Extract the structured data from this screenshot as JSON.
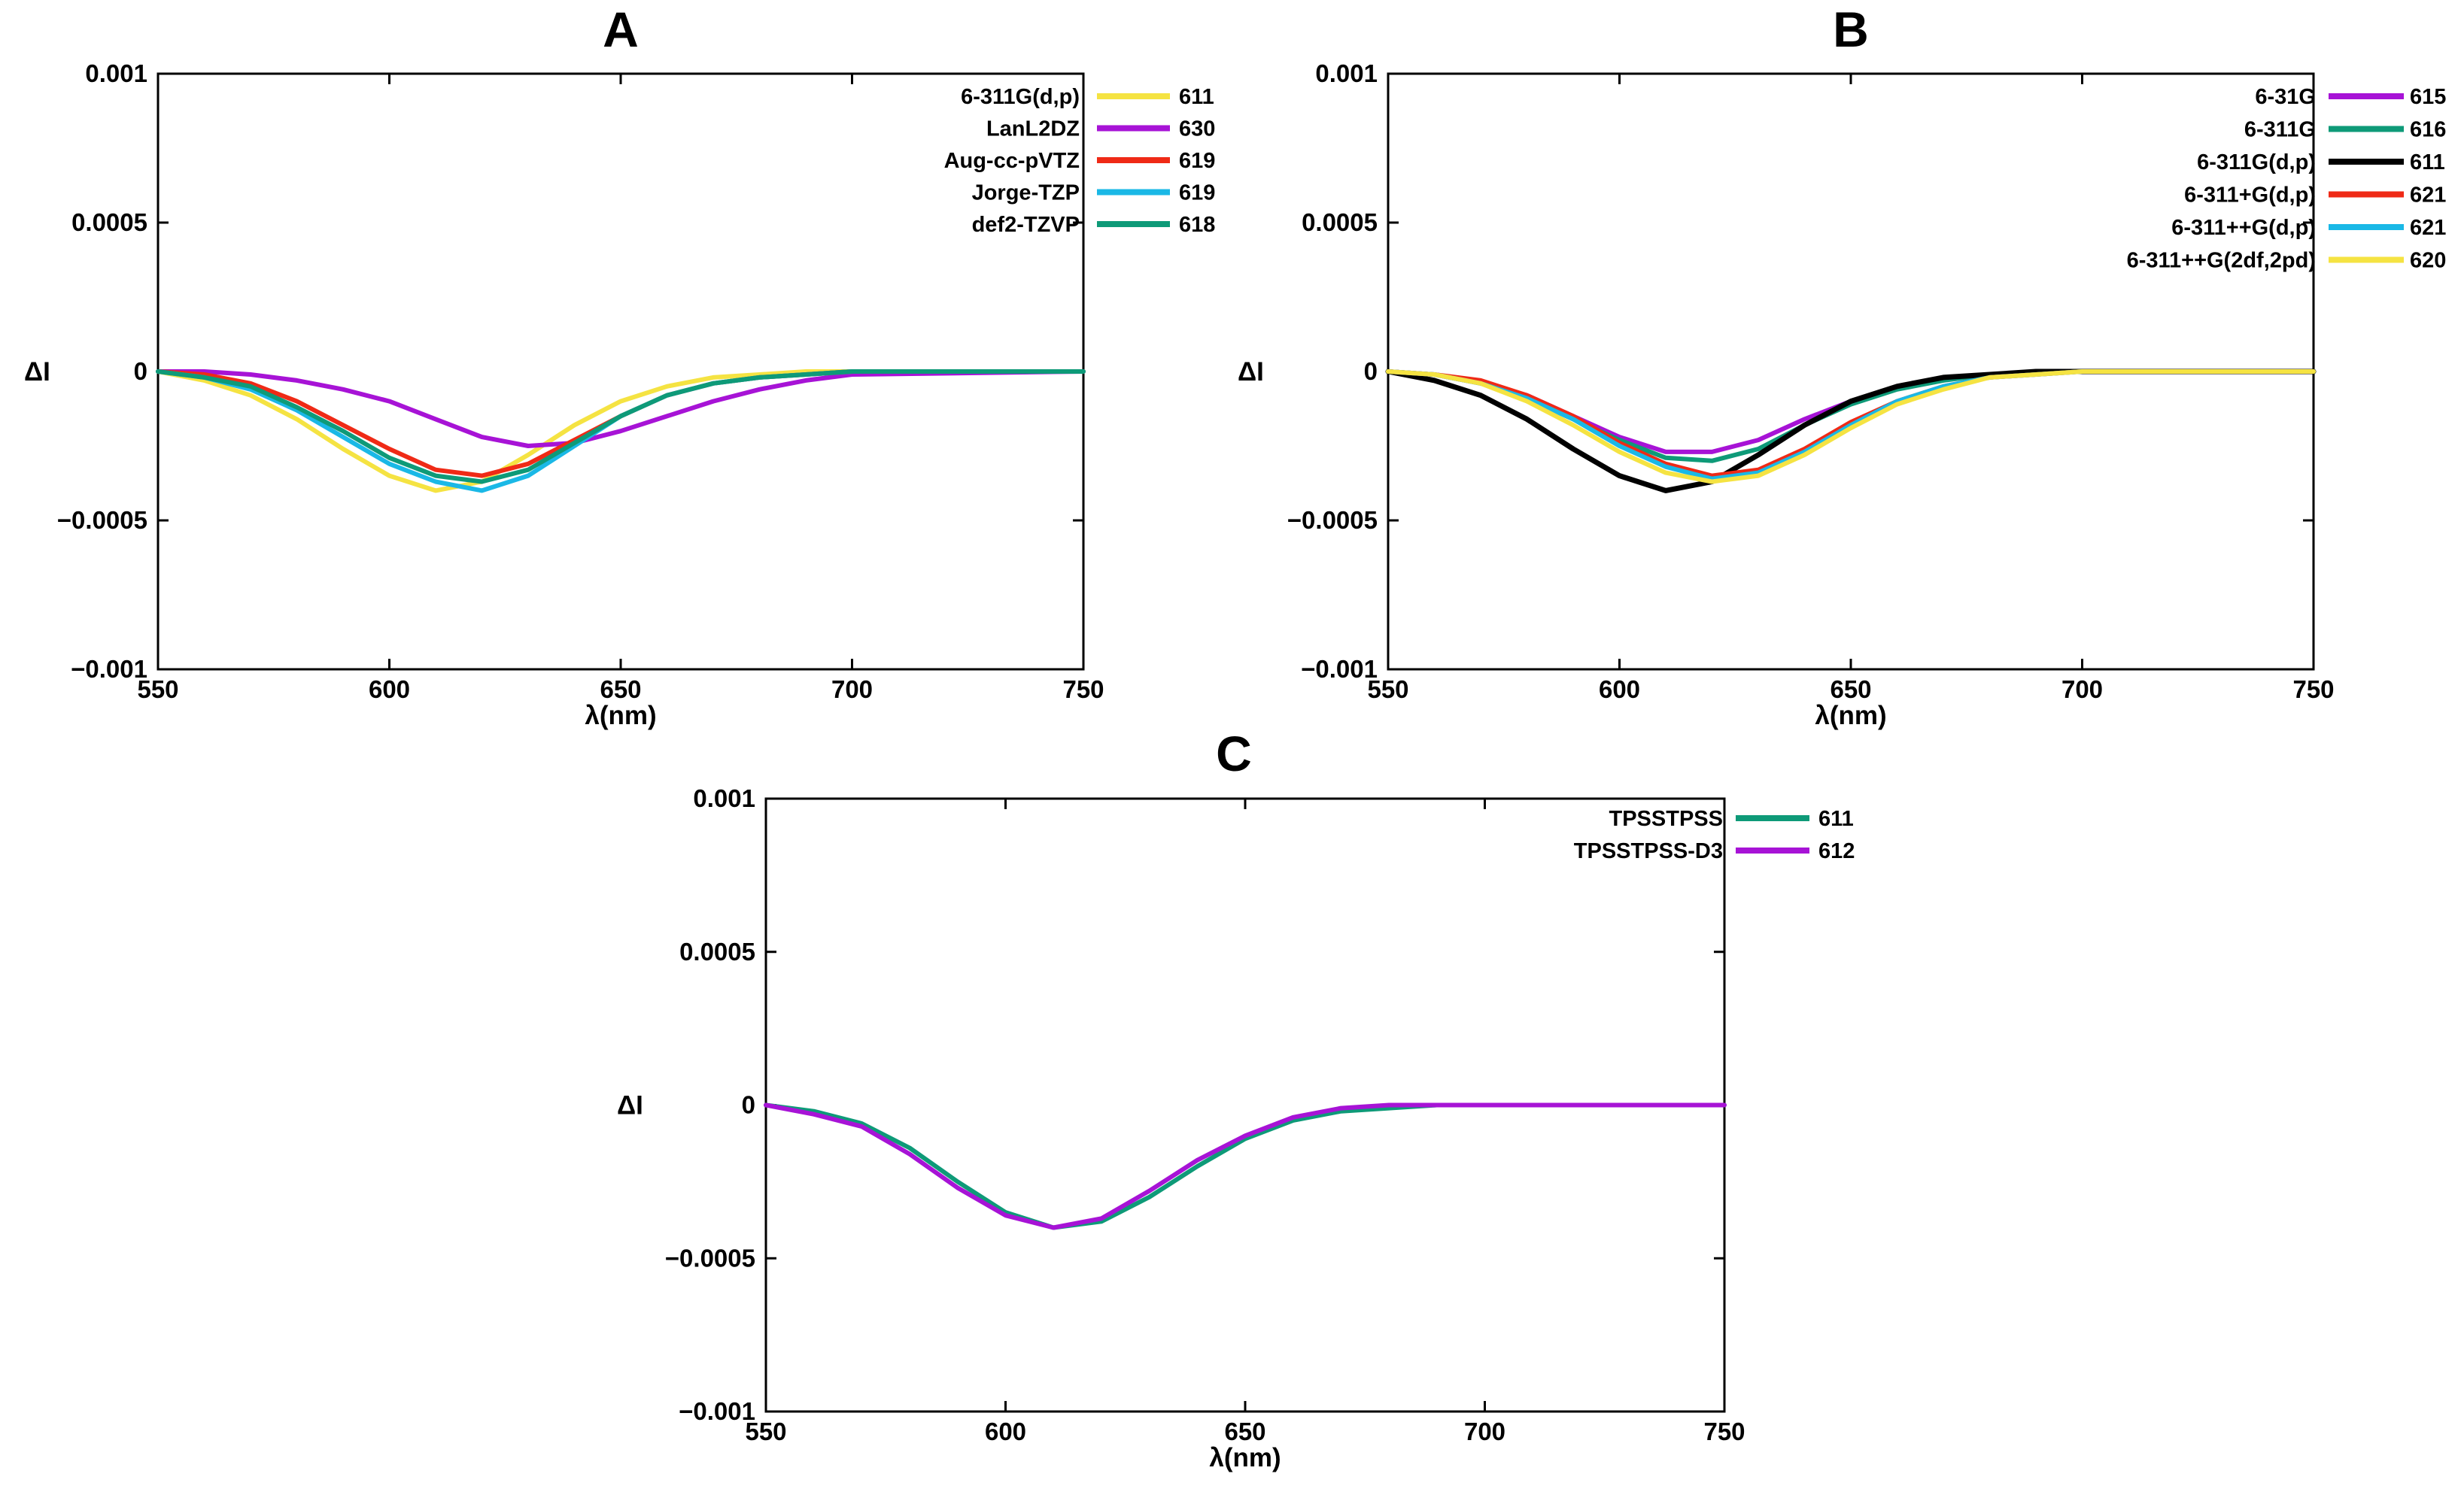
{
  "chart_data": [
    {
      "type": "line",
      "title": "A",
      "xlabel": "λ(nm)",
      "ylabel": "ΔI",
      "xlim": [
        550,
        750
      ],
      "ylim": [
        -0.001,
        0.001
      ],
      "xticks": [
        "550",
        "600",
        "650",
        "700",
        "750"
      ],
      "yticks": [
        "0.001",
        "0.0005",
        "0",
        "−0.0005",
        "−0.001"
      ],
      "legend_position": "top-right",
      "series": [
        {
          "name": "6-311G(d,p)",
          "value_label": "611",
          "color": "#f5e342",
          "x": [
            550,
            560,
            570,
            580,
            590,
            600,
            610,
            620,
            630,
            640,
            650,
            660,
            670,
            680,
            690,
            700,
            750
          ],
          "y": [
            0,
            -3e-05,
            -8e-05,
            -0.00016,
            -0.00026,
            -0.00035,
            -0.0004,
            -0.00037,
            -0.00028,
            -0.00018,
            -0.0001,
            -5e-05,
            -2e-05,
            -1e-05,
            0,
            0,
            0
          ]
        },
        {
          "name": "LanL2DZ",
          "value_label": "630",
          "color": "#a713d6",
          "x": [
            550,
            560,
            570,
            580,
            590,
            600,
            610,
            620,
            630,
            640,
            650,
            660,
            670,
            680,
            690,
            700,
            750
          ],
          "y": [
            0,
            0,
            -1e-05,
            -3e-05,
            -6e-05,
            -0.0001,
            -0.00016,
            -0.00022,
            -0.00025,
            -0.00024,
            -0.0002,
            -0.00015,
            -0.0001,
            -6e-05,
            -3e-05,
            -1e-05,
            0
          ]
        },
        {
          "name": "Aug-cc-pVTZ",
          "value_label": "619",
          "color": "#ef2a16",
          "x": [
            550,
            560,
            570,
            580,
            590,
            600,
            610,
            620,
            630,
            640,
            650,
            660,
            670,
            680,
            690,
            700,
            750
          ],
          "y": [
            0,
            -1e-05,
            -4e-05,
            -0.0001,
            -0.00018,
            -0.00026,
            -0.00033,
            -0.00035,
            -0.00031,
            -0.00023,
            -0.00015,
            -8e-05,
            -4e-05,
            -2e-05,
            -1e-05,
            0,
            0
          ]
        },
        {
          "name": "Jorge-TZP",
          "value_label": "619",
          "color": "#1ab8e6",
          "x": [
            550,
            560,
            570,
            580,
            590,
            600,
            610,
            620,
            630,
            640,
            650,
            660,
            670,
            680,
            690,
            700,
            750
          ],
          "y": [
            0,
            -2e-05,
            -6e-05,
            -0.00013,
            -0.00022,
            -0.00031,
            -0.00037,
            -0.0004,
            -0.00035,
            -0.00025,
            -0.00015,
            -8e-05,
            -4e-05,
            -2e-05,
            -1e-05,
            0,
            0
          ]
        },
        {
          "name": "def2-TZVP",
          "value_label": "618",
          "color": "#0e9a78",
          "x": [
            550,
            560,
            570,
            580,
            590,
            600,
            610,
            620,
            630,
            640,
            650,
            660,
            670,
            680,
            690,
            700,
            750
          ],
          "y": [
            0,
            -2e-05,
            -5e-05,
            -0.00012,
            -0.0002,
            -0.00029,
            -0.00035,
            -0.00037,
            -0.00033,
            -0.00024,
            -0.00015,
            -8e-05,
            -4e-05,
            -2e-05,
            -1e-05,
            0,
            0
          ]
        }
      ]
    },
    {
      "type": "line",
      "title": "B",
      "xlabel": "λ(nm)",
      "ylabel": "ΔI",
      "xlim": [
        550,
        750
      ],
      "ylim": [
        -0.001,
        0.001
      ],
      "xticks": [
        "550",
        "600",
        "650",
        "700",
        "750"
      ],
      "yticks": [
        "0.001",
        "0.0005",
        "0",
        "−0.0005",
        "−0.001"
      ],
      "legend_position": "top-right",
      "series": [
        {
          "name": "6-31G",
          "value_label": "615",
          "color": "#a713d6",
          "x": [
            550,
            560,
            570,
            580,
            590,
            600,
            610,
            620,
            630,
            640,
            650,
            660,
            670,
            680,
            690,
            700,
            750
          ],
          "y": [
            0,
            -1e-05,
            -4e-05,
            -8e-05,
            -0.00015,
            -0.00022,
            -0.00027,
            -0.00027,
            -0.00023,
            -0.00016,
            -0.0001,
            -5e-05,
            -2e-05,
            -1e-05,
            0,
            0,
            0
          ]
        },
        {
          "name": "6-311G",
          "value_label": "616",
          "color": "#0e9a78",
          "x": [
            550,
            560,
            570,
            580,
            590,
            600,
            610,
            620,
            630,
            640,
            650,
            660,
            670,
            680,
            690,
            700,
            750
          ],
          "y": [
            0,
            -1e-05,
            -4e-05,
            -9e-05,
            -0.00016,
            -0.00023,
            -0.00029,
            -0.0003,
            -0.00026,
            -0.00018,
            -0.00011,
            -6e-05,
            -3e-05,
            -1e-05,
            0,
            0,
            0
          ]
        },
        {
          "name": "6-311G(d,p)",
          "value_label": "611",
          "color": "#000000",
          "x": [
            550,
            560,
            570,
            580,
            590,
            600,
            610,
            620,
            630,
            640,
            650,
            660,
            670,
            680,
            690,
            700,
            750
          ],
          "y": [
            0,
            -3e-05,
            -8e-05,
            -0.00016,
            -0.00026,
            -0.00035,
            -0.0004,
            -0.00037,
            -0.00028,
            -0.00018,
            -0.0001,
            -5e-05,
            -2e-05,
            -1e-05,
            0,
            0,
            0
          ]
        },
        {
          "name": "6-311+G(d,p)",
          "value_label": "621",
          "color": "#ef2a16",
          "x": [
            550,
            560,
            570,
            580,
            590,
            600,
            610,
            620,
            630,
            640,
            650,
            660,
            670,
            680,
            690,
            700,
            750
          ],
          "y": [
            0,
            -1e-05,
            -3e-05,
            -8e-05,
            -0.00015,
            -0.00024,
            -0.00031,
            -0.00035,
            -0.00033,
            -0.00026,
            -0.00017,
            -0.0001,
            -5e-05,
            -2e-05,
            -1e-05,
            0,
            0
          ]
        },
        {
          "name": "6-311++G(d,p)",
          "value_label": "621",
          "color": "#1ab8e6",
          "x": [
            550,
            560,
            570,
            580,
            590,
            600,
            610,
            620,
            630,
            640,
            650,
            660,
            670,
            680,
            690,
            700,
            750
          ],
          "y": [
            0,
            -1e-05,
            -4e-05,
            -9e-05,
            -0.00016,
            -0.00025,
            -0.00032,
            -0.00036,
            -0.00034,
            -0.00027,
            -0.00018,
            -0.0001,
            -5e-05,
            -2e-05,
            -1e-05,
            0,
            0
          ]
        },
        {
          "name": "6-311++G(2df,2pd)",
          "value_label": "620",
          "color": "#f5e342",
          "x": [
            550,
            560,
            570,
            580,
            590,
            600,
            610,
            620,
            630,
            640,
            650,
            660,
            670,
            680,
            690,
            700,
            750
          ],
          "y": [
            0,
            -1e-05,
            -4e-05,
            -0.0001,
            -0.00018,
            -0.00027,
            -0.00034,
            -0.00037,
            -0.00035,
            -0.00028,
            -0.00019,
            -0.00011,
            -6e-05,
            -2e-05,
            -1e-05,
            0,
            0
          ]
        }
      ]
    },
    {
      "type": "line",
      "title": "C",
      "xlabel": "λ(nm)",
      "ylabel": "ΔI",
      "xlim": [
        550,
        750
      ],
      "ylim": [
        -0.001,
        0.001
      ],
      "xticks": [
        "550",
        "600",
        "650",
        "700",
        "750"
      ],
      "yticks": [
        "0.001",
        "0.0005",
        "0",
        "−0.0005",
        "−0.001"
      ],
      "legend_position": "top-right",
      "series": [
        {
          "name": "TPSSTPSS",
          "value_label": "611",
          "color": "#0e9a78",
          "x": [
            550,
            560,
            570,
            580,
            590,
            600,
            610,
            620,
            630,
            640,
            650,
            660,
            670,
            680,
            690,
            700,
            750
          ],
          "y": [
            0,
            -2e-05,
            -6e-05,
            -0.00014,
            -0.00025,
            -0.00035,
            -0.0004,
            -0.00038,
            -0.0003,
            -0.0002,
            -0.00011,
            -5e-05,
            -2e-05,
            -1e-05,
            0,
            0,
            0
          ]
        },
        {
          "name": "TPSSTPSS-D3",
          "value_label": "612",
          "color": "#a713d6",
          "x": [
            550,
            560,
            570,
            580,
            590,
            600,
            610,
            620,
            630,
            640,
            650,
            660,
            670,
            680,
            690,
            700,
            750
          ],
          "y": [
            0,
            -3e-05,
            -7e-05,
            -0.00016,
            -0.00027,
            -0.00036,
            -0.0004,
            -0.00037,
            -0.00028,
            -0.00018,
            -0.0001,
            -4e-05,
            -1e-05,
            0,
            0,
            0,
            0
          ]
        }
      ]
    }
  ]
}
